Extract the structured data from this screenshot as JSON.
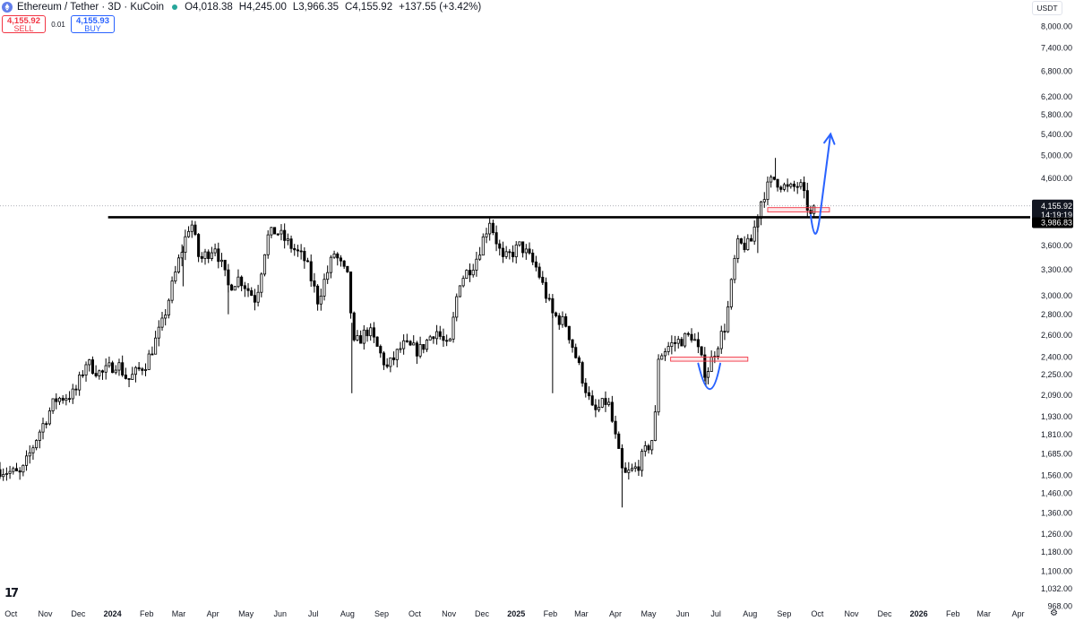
{
  "header": {
    "symbol": "Ethereum / Tether · 3D · KuCoin",
    "open": "O4,018.38",
    "high": "H4,245.00",
    "low": "L3,966.35",
    "close": "C4,155.92",
    "change": "+137.55 (+3.42%)",
    "sell_price": "4,155.92",
    "sell_label": "SELL",
    "spread": "0.01",
    "buy_price": "4,155.93",
    "buy_label": "BUY",
    "currency": "USDT"
  },
  "colors": {
    "up": "#ffffff",
    "down": "#000000",
    "line": "#000000",
    "zone": "#f23645",
    "arrow": "#2962ff",
    "price_marker": "#131722"
  },
  "icons": {
    "settings": "gear-icon",
    "logo": "tradingview-logo",
    "symbol": "ethereum-icon",
    "status": "live-dot-icon"
  },
  "tv_logo_text": "17",
  "chart_data": {
    "type": "candlestick",
    "scale": "log",
    "ylim": [
      968,
      8800
    ],
    "y_ticks": [
      8000,
      7400,
      6800,
      6200,
      5800,
      5400,
      5000,
      4600,
      3600,
      3300,
      3000,
      2800,
      2600,
      2400,
      2250,
      2090,
      1930,
      1810,
      1685,
      1560,
      1460,
      1360,
      1260,
      1180,
      1100,
      1032,
      968
    ],
    "y_tick_labels": [
      "8,000.00",
      "7,400.00",
      "6,800.00",
      "6,200.00",
      "5,800.00",
      "5,400.00",
      "5,000.00",
      "4,600.00",
      "3,600.00",
      "3,300.00",
      "3,000.00",
      "2,800.00",
      "2,600.00",
      "2,400.00",
      "2,250.00",
      "2,090.00",
      "1,930.00",
      "1,810.00",
      "1,685.00",
      "1,560.00",
      "1,460.00",
      "1,360.00",
      "1,260.00",
      "1,180.00",
      "1,100.00",
      "1,032.00",
      "968.00"
    ],
    "x_labels": [
      "Oct",
      "Nov",
      "Dec",
      "2024",
      "Feb",
      "Mar",
      "Apr",
      "May",
      "Jun",
      "Jul",
      "Aug",
      "Sep",
      "Oct",
      "Nov",
      "Dec",
      "2025",
      "Feb",
      "Mar",
      "Apr",
      "May",
      "Jun",
      "Jul",
      "Aug",
      "Sep",
      "Oct",
      "Nov",
      "Dec",
      "2026",
      "Feb",
      "Mar",
      "Apr"
    ],
    "x_label_bold": [
      "2024",
      "2025",
      "2026"
    ],
    "x_range": [
      "2023-09-21",
      "2026-04-12"
    ],
    "current_price": {
      "value": 4155.92,
      "label": "4,155.92",
      "countdown": "14:19:19"
    },
    "horizontal_line": {
      "value": 3986.83,
      "label": "3,986.83",
      "x_start": "2023-12-28"
    },
    "zones": [
      {
        "x_start": "2025-08-17",
        "x_end": "2025-10-12",
        "y_low": 4065,
        "y_high": 4130
      },
      {
        "x_start": "2025-05-21",
        "x_end": "2025-07-30",
        "y_low": 2360,
        "y_high": 2395
      }
    ],
    "arrows": [
      {
        "points": [
          [
            "2025-09-25",
            4020
          ],
          [
            "2025-09-29",
            3700
          ],
          [
            "2025-10-03",
            3960
          ],
          [
            "2025-10-13",
            5400
          ]
        ]
      },
      {
        "points": [
          [
            "2025-06-15",
            2340
          ],
          [
            "2025-06-26",
            2060
          ],
          [
            "2025-07-05",
            2340
          ]
        ]
      }
    ],
    "anchors": [
      [
        "2023-09-21",
        1590
      ],
      [
        "2023-10-10",
        1560
      ],
      [
        "2023-10-25",
        1800
      ],
      [
        "2023-11-10",
        2050
      ],
      [
        "2023-11-28",
        2100
      ],
      [
        "2023-12-08",
        2350
      ],
      [
        "2023-12-22",
        2250
      ],
      [
        "2024-01-05",
        2350
      ],
      [
        "2024-01-15",
        2200
      ],
      [
        "2024-02-01",
        2350
      ],
      [
        "2024-02-15",
        2700
      ],
      [
        "2024-03-01",
        3400
      ],
      [
        "2024-03-12",
        3950
      ],
      [
        "2024-03-20",
        3400
      ],
      [
        "2024-04-03",
        3600
      ],
      [
        "2024-04-15",
        3100
      ],
      [
        "2024-04-25",
        3200
      ],
      [
        "2024-05-10",
        2950
      ],
      [
        "2024-05-20",
        3700
      ],
      [
        "2024-05-28",
        3800
      ],
      [
        "2024-06-10",
        3600
      ],
      [
        "2024-06-24",
        3400
      ],
      [
        "2024-07-05",
        2950
      ],
      [
        "2024-07-20",
        3500
      ],
      [
        "2024-08-01",
        3200
      ],
      [
        "2024-08-07",
        2500
      ],
      [
        "2024-08-20",
        2650
      ],
      [
        "2024-09-06",
        2300
      ],
      [
        "2024-09-20",
        2500
      ],
      [
        "2024-10-05",
        2450
      ],
      [
        "2024-10-20",
        2650
      ],
      [
        "2024-11-01",
        2450
      ],
      [
        "2024-11-10",
        3150
      ],
      [
        "2024-11-25",
        3400
      ],
      [
        "2024-12-08",
        3950
      ],
      [
        "2024-12-20",
        3400
      ],
      [
        "2025-01-05",
        3600
      ],
      [
        "2025-01-20",
        3300
      ],
      [
        "2025-02-03",
        2800
      ],
      [
        "2025-02-15",
        2700
      ],
      [
        "2025-03-01",
        2250
      ],
      [
        "2025-03-12",
        1950
      ],
      [
        "2025-03-25",
        2050
      ],
      [
        "2025-04-08",
        1550
      ],
      [
        "2025-04-20",
        1600
      ],
      [
        "2025-05-06",
        1800
      ],
      [
        "2025-05-10",
        2400
      ],
      [
        "2025-05-20",
        2500
      ],
      [
        "2025-06-10",
        2600
      ],
      [
        "2025-06-22",
        2250
      ],
      [
        "2025-06-30",
        2450
      ],
      [
        "2025-07-10",
        2700
      ],
      [
        "2025-07-20",
        3600
      ],
      [
        "2025-08-01",
        3600
      ],
      [
        "2025-08-12",
        4300
      ],
      [
        "2025-08-22",
        4600
      ],
      [
        "2025-09-05",
        4400
      ],
      [
        "2025-09-15",
        4500
      ],
      [
        "2025-09-25",
        4000
      ],
      [
        "2025-09-30",
        4155
      ]
    ],
    "spikes": [
      {
        "date": "2024-03-05",
        "side": "low",
        "value": 3100
      },
      {
        "date": "2024-04-15",
        "side": "low",
        "value": 2800
      },
      {
        "date": "2024-08-05",
        "side": "low",
        "value": 2100
      },
      {
        "date": "2025-02-03",
        "side": "low",
        "value": 2100
      },
      {
        "date": "2025-04-07",
        "side": "low",
        "value": 1385
      },
      {
        "date": "2025-06-22",
        "side": "low",
        "value": 2150
      },
      {
        "date": "2025-08-08",
        "side": "low",
        "value": 3500
      },
      {
        "date": "2025-08-24",
        "side": "high",
        "value": 4950
      }
    ]
  }
}
